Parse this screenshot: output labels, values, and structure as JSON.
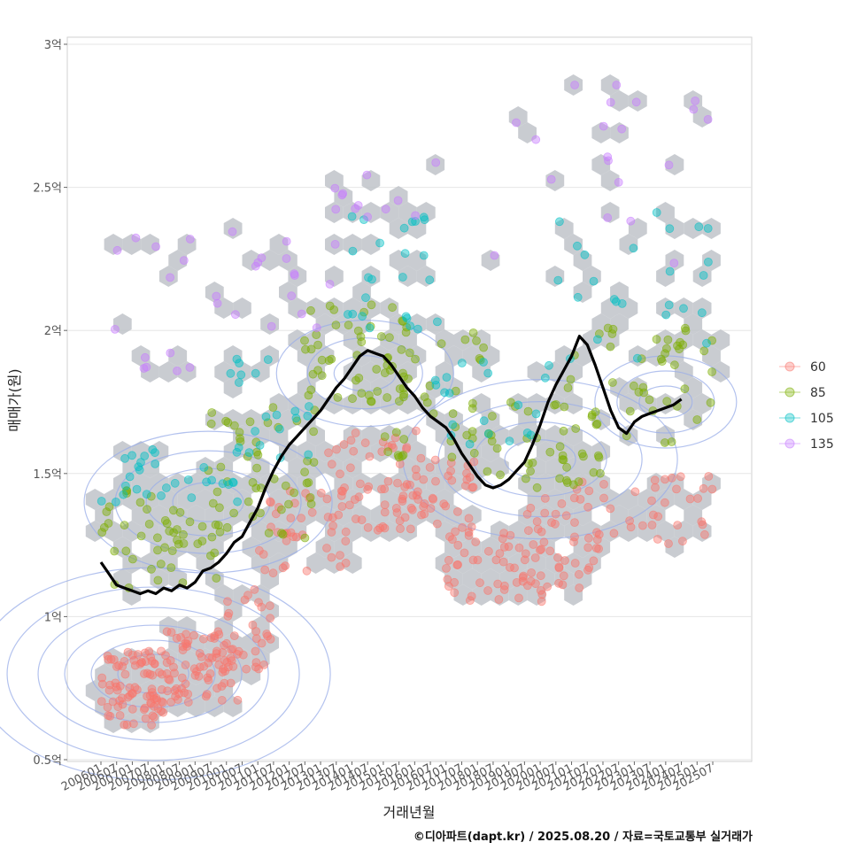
{
  "chart_data": {
    "type": "scatter",
    "ylabel": "매매가(원)",
    "xlabel": "거래년월",
    "caption": "©디아파트(dapt.kr) / 2025.08.20 / 자료=국토교통부 실거래가",
    "y_range": [
      0.5,
      3.0
    ],
    "y_ticks": [
      {
        "value": 0.5,
        "label": "0.5억"
      },
      {
        "value": 1.0,
        "label": "1억"
      },
      {
        "value": 1.5,
        "label": "1.5억"
      },
      {
        "value": 2.0,
        "label": "2억"
      },
      {
        "value": 2.5,
        "label": "2.5억"
      },
      {
        "value": 3.0,
        "label": "3억"
      }
    ],
    "x_range": [
      "2006-01",
      "2025-07"
    ],
    "x_ticks": [
      "200601",
      "200607",
      "200701",
      "200707",
      "200801",
      "200807",
      "200901",
      "200907",
      "201001",
      "201007",
      "201101",
      "201107",
      "201201",
      "201207",
      "201301",
      "201307",
      "201401",
      "201407",
      "201501",
      "201507",
      "201601",
      "201607",
      "201701",
      "201707",
      "201801",
      "201807",
      "201901",
      "201907",
      "202001",
      "202007",
      "202101",
      "202107",
      "202201",
      "202207",
      "202301",
      "202307",
      "202401",
      "202407",
      "202501",
      "202507"
    ],
    "legend": {
      "position": "right",
      "entries": [
        {
          "name": "60",
          "color": "#F8766D"
        },
        {
          "name": "85",
          "color": "#7CAE00"
        },
        {
          "name": "105",
          "color": "#00BFC4"
        },
        {
          "name": "135",
          "color": "#C77CFF"
        }
      ]
    },
    "trend_line": {
      "color": "#000000",
      "points": [
        [
          "2006-01",
          1.19
        ],
        [
          "2006-04",
          1.15
        ],
        [
          "2006-07",
          1.11
        ],
        [
          "2006-10",
          1.1
        ],
        [
          "2007-01",
          1.09
        ],
        [
          "2007-04",
          1.08
        ],
        [
          "2007-07",
          1.09
        ],
        [
          "2007-10",
          1.08
        ],
        [
          "2008-01",
          1.1
        ],
        [
          "2008-04",
          1.09
        ],
        [
          "2008-07",
          1.11
        ],
        [
          "2008-10",
          1.1
        ],
        [
          "2009-01",
          1.12
        ],
        [
          "2009-04",
          1.16
        ],
        [
          "2009-07",
          1.17
        ],
        [
          "2009-10",
          1.19
        ],
        [
          "2010-01",
          1.22
        ],
        [
          "2010-04",
          1.26
        ],
        [
          "2010-07",
          1.28
        ],
        [
          "2010-10",
          1.33
        ],
        [
          "2011-01",
          1.38
        ],
        [
          "2011-04",
          1.45
        ],
        [
          "2011-07",
          1.51
        ],
        [
          "2011-10",
          1.56
        ],
        [
          "2012-01",
          1.6
        ],
        [
          "2012-04",
          1.63
        ],
        [
          "2012-07",
          1.66
        ],
        [
          "2012-10",
          1.69
        ],
        [
          "2013-01",
          1.72
        ],
        [
          "2013-04",
          1.76
        ],
        [
          "2013-07",
          1.8
        ],
        [
          "2013-10",
          1.83
        ],
        [
          "2014-01",
          1.87
        ],
        [
          "2014-04",
          1.91
        ],
        [
          "2014-07",
          1.93
        ],
        [
          "2014-10",
          1.92
        ],
        [
          "2015-01",
          1.91
        ],
        [
          "2015-04",
          1.88
        ],
        [
          "2015-07",
          1.84
        ],
        [
          "2015-10",
          1.8
        ],
        [
          "2016-01",
          1.77
        ],
        [
          "2016-04",
          1.73
        ],
        [
          "2016-07",
          1.7
        ],
        [
          "2016-10",
          1.68
        ],
        [
          "2017-01",
          1.66
        ],
        [
          "2017-04",
          1.62
        ],
        [
          "2017-07",
          1.57
        ],
        [
          "2017-10",
          1.53
        ],
        [
          "2018-01",
          1.49
        ],
        [
          "2018-04",
          1.46
        ],
        [
          "2018-07",
          1.45
        ],
        [
          "2018-10",
          1.46
        ],
        [
          "2019-01",
          1.48
        ],
        [
          "2019-04",
          1.51
        ],
        [
          "2019-07",
          1.54
        ],
        [
          "2019-10",
          1.6
        ],
        [
          "2020-01",
          1.67
        ],
        [
          "2020-04",
          1.75
        ],
        [
          "2020-07",
          1.81
        ],
        [
          "2020-10",
          1.86
        ],
        [
          "2021-01",
          1.91
        ],
        [
          "2021-04",
          1.98
        ],
        [
          "2021-07",
          1.95
        ],
        [
          "2021-10",
          1.88
        ],
        [
          "2022-01",
          1.8
        ],
        [
          "2022-04",
          1.72
        ],
        [
          "2022-07",
          1.66
        ],
        [
          "2022-10",
          1.64
        ],
        [
          "2023-01",
          1.68
        ],
        [
          "2023-04",
          1.7
        ],
        [
          "2023-07",
          1.71
        ],
        [
          "2023-10",
          1.72
        ],
        [
          "2024-01",
          1.73
        ],
        [
          "2024-04",
          1.74
        ],
        [
          "2024-07",
          1.76
        ]
      ]
    },
    "scatter_clusters": [
      {
        "series": "60",
        "x": [
          "2006-01",
          "2008-06"
        ],
        "y": [
          0.62,
          0.88
        ],
        "count": 90
      },
      {
        "series": "60",
        "x": [
          "2008-01",
          "2010-06"
        ],
        "y": [
          0.7,
          0.95
        ],
        "count": 70
      },
      {
        "series": "60",
        "x": [
          "2010-01",
          "2011-06"
        ],
        "y": [
          0.8,
          1.1
        ],
        "count": 30
      },
      {
        "series": "60",
        "x": [
          "2011-01",
          "2013-12"
        ],
        "y": [
          1.15,
          1.45
        ],
        "count": 40
      },
      {
        "series": "60",
        "x": [
          "2013-01",
          "2016-06"
        ],
        "y": [
          1.3,
          1.65
        ],
        "count": 60
      },
      {
        "series": "60",
        "x": [
          "2015-06",
          "2017-12"
        ],
        "y": [
          1.28,
          1.55
        ],
        "count": 40
      },
      {
        "series": "60",
        "x": [
          "2017-01",
          "2020-06"
        ],
        "y": [
          1.05,
          1.3
        ],
        "count": 50
      },
      {
        "series": "60",
        "x": [
          "2019-06",
          "2021-12"
        ],
        "y": [
          1.1,
          1.45
        ],
        "count": 40
      },
      {
        "series": "60",
        "x": [
          "2021-01",
          "2025-07"
        ],
        "y": [
          1.25,
          1.5
        ],
        "count": 40
      },
      {
        "series": "85",
        "x": [
          "2006-01",
          "2009-12"
        ],
        "y": [
          1.1,
          1.45
        ],
        "count": 50
      },
      {
        "series": "85",
        "x": [
          "2009-06",
          "2012-12"
        ],
        "y": [
          1.25,
          1.75
        ],
        "count": 50
      },
      {
        "series": "85",
        "x": [
          "2012-06",
          "2015-12"
        ],
        "y": [
          1.75,
          2.1
        ],
        "count": 50
      },
      {
        "series": "85",
        "x": [
          "2015-01",
          "2018-06"
        ],
        "y": [
          1.55,
          2.0
        ],
        "count": 40
      },
      {
        "series": "85",
        "x": [
          "2018-01",
          "2021-12"
        ],
        "y": [
          1.45,
          1.75
        ],
        "count": 40
      },
      {
        "series": "85",
        "x": [
          "2020-06",
          "2025-07"
        ],
        "y": [
          1.6,
          2.05
        ],
        "count": 45
      },
      {
        "series": "105",
        "x": [
          "2006-01",
          "2010-06"
        ],
        "y": [
          1.4,
          1.6
        ],
        "count": 30
      },
      {
        "series": "105",
        "x": [
          "2010-01",
          "2012-12"
        ],
        "y": [
          1.55,
          1.95
        ],
        "count": 20
      },
      {
        "series": "105",
        "x": [
          "2013-06",
          "2016-12"
        ],
        "y": [
          2.0,
          2.4
        ],
        "count": 25
      },
      {
        "series": "105",
        "x": [
          "2016-06",
          "2020-06"
        ],
        "y": [
          1.6,
          1.9
        ],
        "count": 20
      },
      {
        "series": "105",
        "x": [
          "2020-06",
          "2025-07"
        ],
        "y": [
          1.9,
          2.45
        ],
        "count": 25
      },
      {
        "series": "135",
        "x": [
          "2006-01",
          "2009-12"
        ],
        "y": [
          1.85,
          2.35
        ],
        "count": 15
      },
      {
        "series": "135",
        "x": [
          "2010-01",
          "2013-12"
        ],
        "y": [
          2.0,
          2.35
        ],
        "count": 15
      },
      {
        "series": "135",
        "x": [
          "2013-06",
          "2016-12"
        ],
        "y": [
          2.35,
          2.6
        ],
        "count": 12
      },
      {
        "series": "135",
        "x": [
          "2018-06",
          "2025-07"
        ],
        "y": [
          2.2,
          2.9
        ],
        "count": 20
      }
    ],
    "hex_color": "#BFC3C9",
    "contour_color": "#9AAEE8",
    "grid": true
  }
}
